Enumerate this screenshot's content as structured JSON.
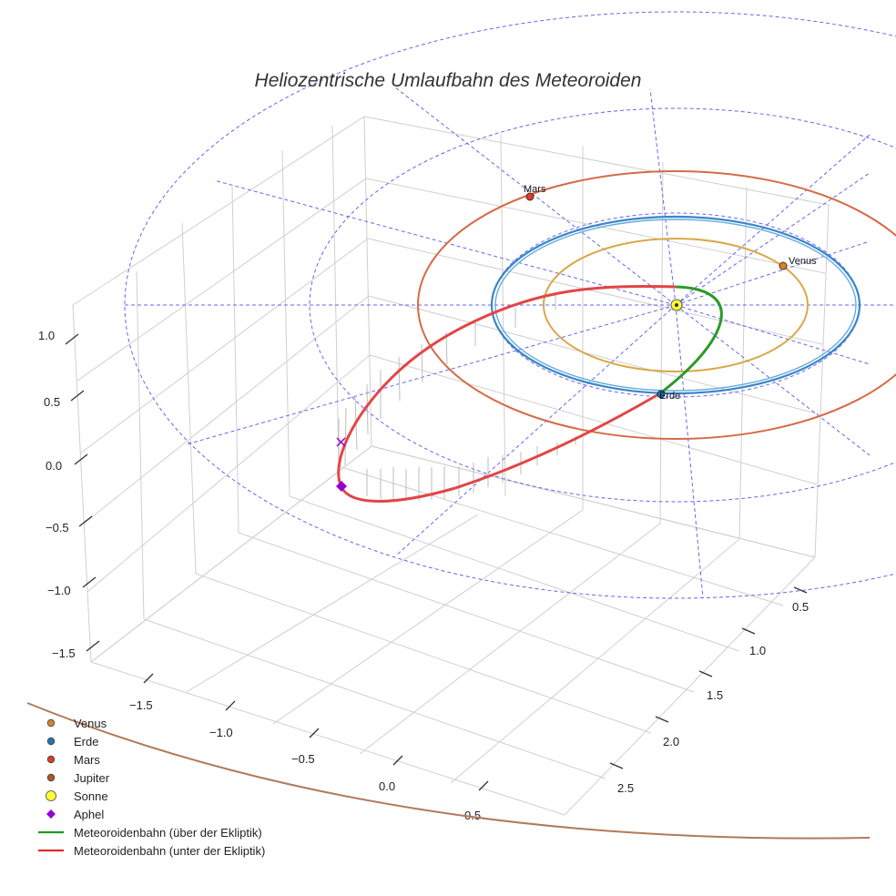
{
  "chart_data": {
    "type": "line",
    "projection": "3d",
    "title": "Heliozentrische Umlaufbahn des Meteoroiden",
    "x_ticks": [
      "−1.5",
      "−1.0",
      "−0.5",
      "0.0",
      "0.5"
    ],
    "y_ticks": [
      "0.5",
      "1.0",
      "1.5",
      "2.0",
      "2.5"
    ],
    "z_ticks": [
      "−1.5",
      "−1.0",
      "−0.5",
      "0.0",
      "0.5",
      "1.0"
    ],
    "planets": [
      {
        "name": "Venus",
        "orbit_radius_au": 0.72,
        "color": "#c8861c",
        "labelled": true
      },
      {
        "name": "Erde",
        "orbit_radius_au": 1.0,
        "color": "#1f77b4",
        "labelled": true
      },
      {
        "name": "Mars",
        "orbit_radius_au": 1.52,
        "color": "#d9462a",
        "labelled": true
      },
      {
        "name": "Jupiter",
        "orbit_radius_au": 5.2,
        "color": "#a0522d",
        "labelled": false
      }
    ],
    "sun": {
      "name": "Sonne",
      "color": "#ffff33"
    },
    "aphel": {
      "name": "Aphel",
      "color": "#9400d3"
    },
    "meteoroid_series": [
      {
        "name": "Meteoroidenbahn (über der Ekliptik)",
        "color": "#1e9a1e"
      },
      {
        "name": "Meteoroidenbahn (unter der Ekliptik)",
        "color": "#e02a2a"
      }
    ],
    "legend": {
      "position": "bottom-left",
      "entries": [
        {
          "label": "Venus",
          "marker": "dot",
          "color": "#d4842c"
        },
        {
          "label": "Erde",
          "marker": "dot",
          "color": "#1f77b4"
        },
        {
          "label": "Mars",
          "marker": "dot",
          "color": "#d6402a"
        },
        {
          "label": "Jupiter",
          "marker": "dot",
          "color": "#b0552d"
        },
        {
          "label": "Sonne",
          "marker": "bigdot",
          "color": "#ffff33"
        },
        {
          "label": "Aphel",
          "marker": "diamond",
          "color": "#9400d3"
        },
        {
          "label": "Meteoroidenbahn (über der Ekliptik)",
          "marker": "line",
          "color": "#1e9a1e"
        },
        {
          "label": "Meteoroidenbahn (unter der Ekliptik)",
          "marker": "line",
          "color": "#e02a2a"
        }
      ]
    },
    "grid": true
  }
}
